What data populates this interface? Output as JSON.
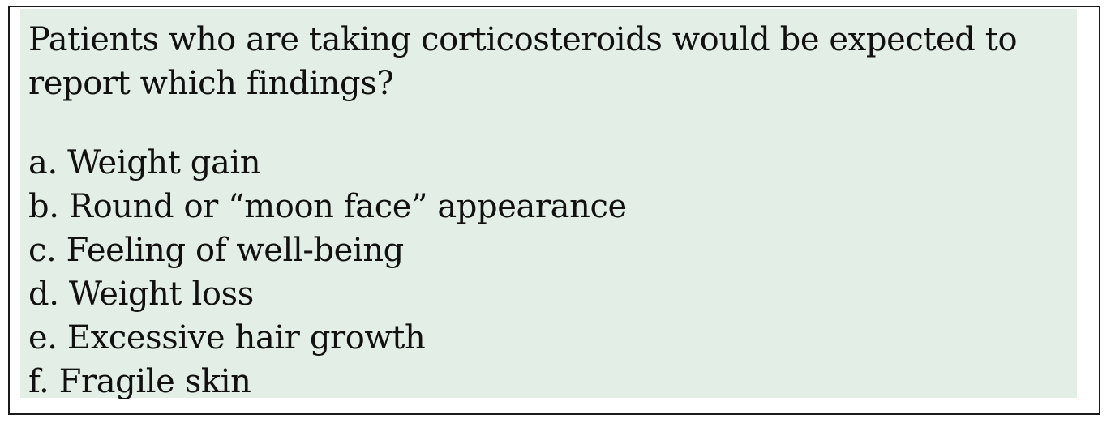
{
  "question": {
    "text": "Patients who are taking corticosteroids would be expected to report which findings?"
  },
  "options": [
    {
      "letter": "a.",
      "text": "Weight gain"
    },
    {
      "letter": "b.",
      "text": "Round or “moon face” appearance"
    },
    {
      "letter": "c.",
      "text": "Feeling of well-being"
    },
    {
      "letter": "d.",
      "text": "Weight loss"
    },
    {
      "letter": "e.",
      "text": "Excessive hair growth"
    },
    {
      "letter": "f.",
      "text": "Fragile skin"
    }
  ],
  "colors": {
    "panel_background": "#e3efe6",
    "border": "#1a1a1a",
    "text": "#111111"
  }
}
